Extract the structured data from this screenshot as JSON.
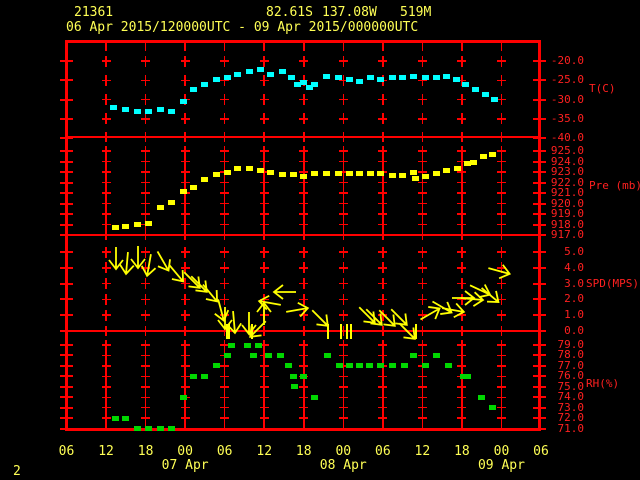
{
  "header": {
    "station_id": "21361",
    "latitude": "82.61S",
    "longitude": "137.08W",
    "elevation": "519M",
    "period": "06 Apr 2015/120000UTC - 09 Apr 2015/000000UTC"
  },
  "footer": {
    "page_number": "2"
  },
  "colors": {
    "frame": "#ff0000",
    "axis_text": "#ff2020",
    "header_text": "#ffff55",
    "temperature": "#00ffff",
    "pressure": "#ffff00",
    "wind": "#ffff00",
    "humidity": "#00d800"
  },
  "x_axis": {
    "start": "06 Apr 2015 06UTC",
    "end": "09 Apr 2015 06UTC",
    "tick_interval_hours": 6,
    "hour_labels": [
      "06",
      "12",
      "18",
      "00",
      "06",
      "12",
      "18",
      "00",
      "06",
      "12",
      "18",
      "00",
      "06"
    ],
    "date_labels": [
      {
        "label": "07 Apr",
        "tick": 3
      },
      {
        "label": "08 Apr",
        "tick": 7
      },
      {
        "label": "09 Apr",
        "tick": 11
      }
    ]
  },
  "chart_data": [
    {
      "type": "scatter",
      "name": "temperature",
      "ylabel": "T(C)",
      "yticks": [
        -20.0,
        -25.0,
        -30.0,
        -35.0,
        -40.0
      ],
      "ylim": [
        -41.0,
        -15.0
      ],
      "x_unit": "hours since 06 Apr 2015 06UTC",
      "points": [
        [
          7.2,
          -32.2
        ],
        [
          8.9,
          -32.7
        ],
        [
          10.7,
          -33.2
        ],
        [
          12.4,
          -33.0
        ],
        [
          14.2,
          -32.5
        ],
        [
          15.9,
          -33.0
        ],
        [
          17.7,
          -30.4
        ],
        [
          19.3,
          -27.3
        ],
        [
          21.0,
          -26.0
        ],
        [
          22.7,
          -24.9
        ],
        [
          24.4,
          -24.2
        ],
        [
          26.0,
          -23.6
        ],
        [
          27.7,
          -22.6
        ],
        [
          29.4,
          -22.3
        ],
        [
          31.0,
          -23.4
        ],
        [
          32.7,
          -22.6
        ],
        [
          34.1,
          -24.4
        ],
        [
          35.0,
          -26.0
        ],
        [
          35.9,
          -25.5
        ],
        [
          36.8,
          -26.8
        ],
        [
          37.7,
          -26.2
        ],
        [
          39.5,
          -23.9
        ],
        [
          41.2,
          -24.4
        ],
        [
          42.9,
          -24.7
        ],
        [
          44.5,
          -25.2
        ],
        [
          46.2,
          -24.2
        ],
        [
          47.7,
          -24.7
        ],
        [
          49.4,
          -24.4
        ],
        [
          51.0,
          -24.2
        ],
        [
          52.7,
          -23.9
        ],
        [
          54.4,
          -24.4
        ],
        [
          56.1,
          -24.2
        ],
        [
          57.7,
          -23.9
        ],
        [
          59.2,
          -24.9
        ],
        [
          60.6,
          -26.2
        ],
        [
          62.1,
          -27.3
        ],
        [
          63.6,
          -28.8
        ],
        [
          64.9,
          -29.9
        ]
      ]
    },
    {
      "type": "scatter",
      "name": "pressure",
      "ylabel": "Pre (mb)",
      "yticks": [
        925.0,
        924.0,
        923.0,
        922.0,
        921.0,
        920.0,
        919.0,
        918.0,
        917.0
      ],
      "ylim": [
        916.9,
        926.2
      ],
      "x_unit": "hours since 06 Apr 2015 06UTC",
      "points": [
        [
          7.4,
          917.7
        ],
        [
          9.0,
          917.8
        ],
        [
          10.7,
          918.0
        ],
        [
          12.4,
          918.1
        ],
        [
          14.3,
          919.6
        ],
        [
          16.0,
          920.1
        ],
        [
          17.7,
          921.1
        ],
        [
          19.3,
          921.5
        ],
        [
          21.0,
          922.3
        ],
        [
          22.7,
          922.8
        ],
        [
          24.4,
          923.0
        ],
        [
          26.0,
          923.3
        ],
        [
          27.7,
          923.3
        ],
        [
          29.4,
          923.1
        ],
        [
          31.0,
          923.0
        ],
        [
          32.7,
          922.8
        ],
        [
          34.4,
          922.8
        ],
        [
          35.9,
          922.6
        ],
        [
          37.7,
          922.9
        ],
        [
          39.4,
          922.9
        ],
        [
          41.2,
          922.9
        ],
        [
          42.9,
          922.9
        ],
        [
          44.5,
          922.9
        ],
        [
          46.2,
          922.9
        ],
        [
          47.7,
          922.9
        ],
        [
          49.5,
          922.7
        ],
        [
          51.0,
          922.7
        ],
        [
          52.7,
          923.0
        ],
        [
          53.0,
          922.4
        ],
        [
          54.4,
          922.6
        ],
        [
          56.2,
          922.9
        ],
        [
          57.7,
          923.1
        ],
        [
          59.4,
          923.3
        ],
        [
          60.9,
          923.8
        ],
        [
          61.7,
          923.9
        ],
        [
          63.2,
          924.5
        ],
        [
          64.7,
          924.7
        ]
      ]
    },
    {
      "type": "wind-vector",
      "name": "wind",
      "ylabel": "SPD(MPS)",
      "yticks": [
        5.0,
        4.0,
        3.0,
        2.0,
        1.0,
        0.0
      ],
      "ylim": [
        0.0,
        6.0
      ],
      "x_unit": "hours since 06 Apr 2015 06UTC",
      "arrow_note": "triples of [hours, speed_mps, arrow_direction_deg_clockwise_from_east]",
      "arrows": [
        [
          7.5,
          4.6,
          90
        ],
        [
          9.2,
          4.3,
          95
        ],
        [
          10.8,
          4.7,
          90
        ],
        [
          12.5,
          4.2,
          100
        ],
        [
          14.6,
          4.4,
          60
        ],
        [
          16.6,
          3.7,
          50
        ],
        [
          19.0,
          3.2,
          45
        ],
        [
          20.1,
          3.0,
          45
        ],
        [
          21.8,
          2.4,
          50
        ],
        [
          23.4,
          1.3,
          75
        ],
        [
          24.0,
          0.8,
          90
        ],
        [
          25.4,
          0.6,
          85
        ],
        [
          27.7,
          0.5,
          90
        ],
        [
          29.1,
          0.1,
          135
        ],
        [
          30.0,
          1.1,
          270
        ],
        [
          30.9,
          1.8,
          190
        ],
        [
          33.1,
          2.5,
          180
        ],
        [
          35.0,
          1.3,
          350
        ],
        [
          38.5,
          0.8,
          45
        ],
        [
          45.6,
          1.0,
          45
        ],
        [
          46.6,
          0.9,
          45
        ],
        [
          48.7,
          0.8,
          45
        ],
        [
          50.4,
          0.9,
          45
        ],
        [
          51.7,
          0.0,
          45
        ],
        [
          55.2,
          1.1,
          -30
        ],
        [
          57.0,
          1.5,
          30
        ],
        [
          58.7,
          1.3,
          10
        ],
        [
          60.1,
          2.1,
          0
        ],
        [
          61.6,
          2.0,
          5
        ],
        [
          62.8,
          2.6,
          25
        ],
        [
          64.3,
          2.3,
          40
        ],
        [
          65.7,
          3.8,
          15
        ]
      ],
      "calm_bars": [
        24.3,
        24.7,
        28.2,
        39.7,
        41.7,
        42.5,
        43.2,
        53.0
      ]
    },
    {
      "type": "scatter",
      "name": "humidity",
      "ylabel": "RH(%)",
      "yticks": [
        79.0,
        78.0,
        77.0,
        76.0,
        75.0,
        74.0,
        73.0,
        72.0,
        71.0
      ],
      "ylim": [
        70.7,
        80.3
      ],
      "x_unit": "hours since 06 Apr 2015 06UTC",
      "points": [
        [
          7.4,
          72
        ],
        [
          9.0,
          72
        ],
        [
          10.8,
          71
        ],
        [
          12.4,
          71
        ],
        [
          14.2,
          71
        ],
        [
          16.0,
          71
        ],
        [
          17.7,
          74
        ],
        [
          19.3,
          76
        ],
        [
          20.9,
          76
        ],
        [
          22.7,
          77
        ],
        [
          24.4,
          78
        ],
        [
          25.1,
          79
        ],
        [
          27.5,
          79
        ],
        [
          28.3,
          78
        ],
        [
          29.2,
          79
        ],
        [
          30.7,
          78
        ],
        [
          32.5,
          78
        ],
        [
          33.7,
          77
        ],
        [
          34.4,
          76
        ],
        [
          34.6,
          75
        ],
        [
          35.9,
          76
        ],
        [
          37.7,
          74
        ],
        [
          39.6,
          78
        ],
        [
          41.5,
          77
        ],
        [
          43.0,
          77
        ],
        [
          44.5,
          77
        ],
        [
          46.0,
          77
        ],
        [
          47.6,
          77
        ],
        [
          49.5,
          77
        ],
        [
          51.3,
          77
        ],
        [
          52.7,
          78
        ],
        [
          54.5,
          77
        ],
        [
          56.2,
          78
        ],
        [
          57.9,
          77
        ],
        [
          60.2,
          76
        ],
        [
          60.9,
          76
        ],
        [
          63.0,
          74
        ],
        [
          64.7,
          73
        ]
      ]
    }
  ]
}
